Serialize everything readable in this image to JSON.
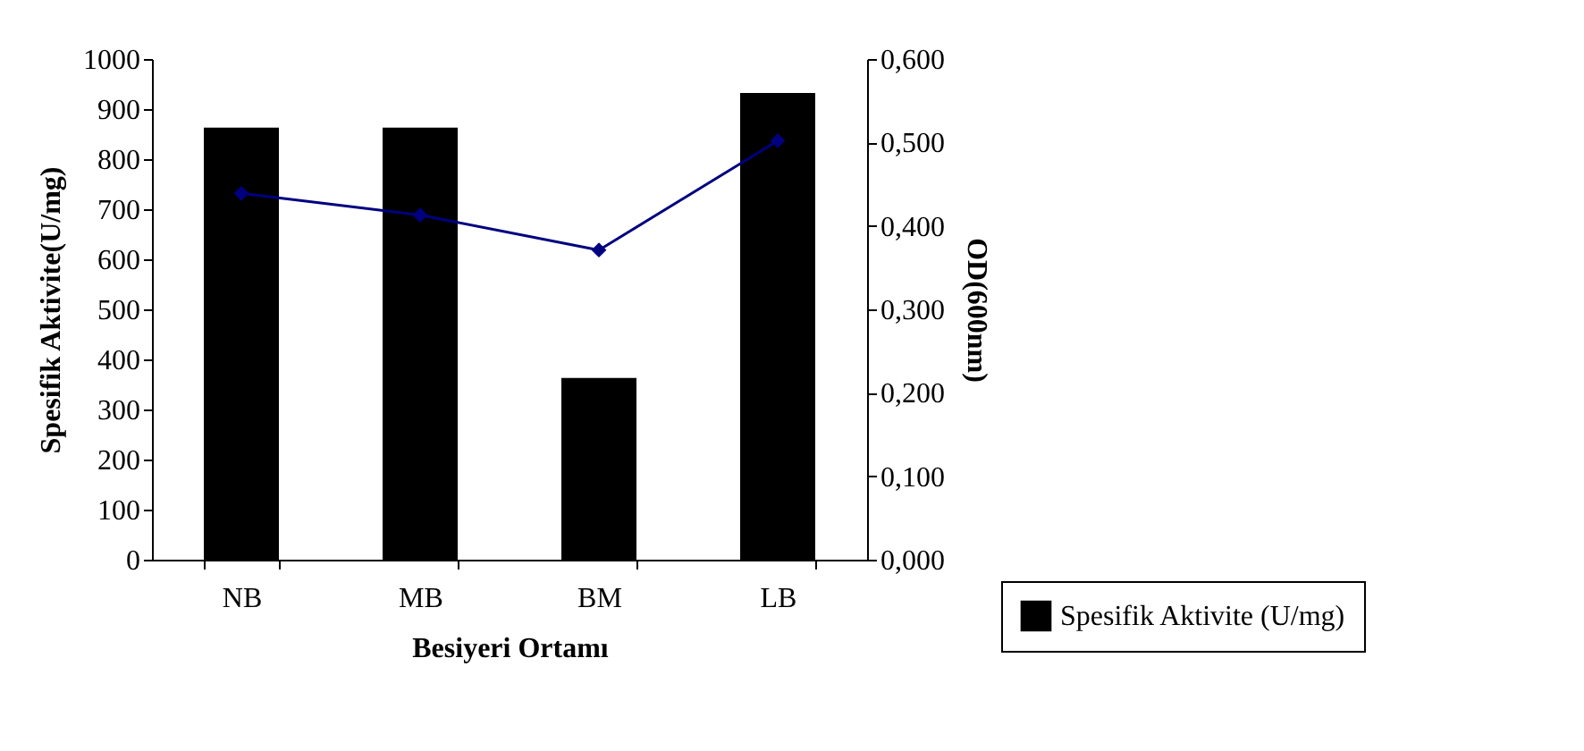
{
  "chart_data": {
    "type": "bar",
    "categories": [
      "NB",
      "MB",
      "BM",
      "LB"
    ],
    "xlabel": "Besiyeri Ortamı",
    "ylabel": "Spesifik Aktivite(U/mg)",
    "y2label": "OD(600nm)",
    "series": [
      {
        "name": "Spesifik Aktivite (U/mg)",
        "color": "#000000",
        "values": [
          863,
          863,
          363,
          932
        ]
      },
      {
        "type": "line",
        "axis": "y2",
        "color": "#000080",
        "marker": "diamond",
        "values": [
          0.439,
          0.413,
          0.371,
          0.502
        ]
      }
    ],
    "ylim": [
      0,
      1000
    ],
    "yticks": [
      0,
      100,
      200,
      300,
      400,
      500,
      600,
      700,
      800,
      900,
      1000
    ],
    "y2lim": [
      0,
      0.6
    ],
    "y2ticks": [
      {
        "value": 0,
        "label": "0,000"
      },
      {
        "value": 0.1,
        "label": "0,100"
      },
      {
        "value": 0.2,
        "label": "0,200"
      },
      {
        "value": 0.3,
        "label": "0,300"
      },
      {
        "value": 0.4,
        "label": "0,400"
      },
      {
        "value": 0.5,
        "label": "0,500"
      },
      {
        "value": 0.6,
        "label": "0,600"
      }
    ],
    "grid": false,
    "legend": "bottom right"
  }
}
